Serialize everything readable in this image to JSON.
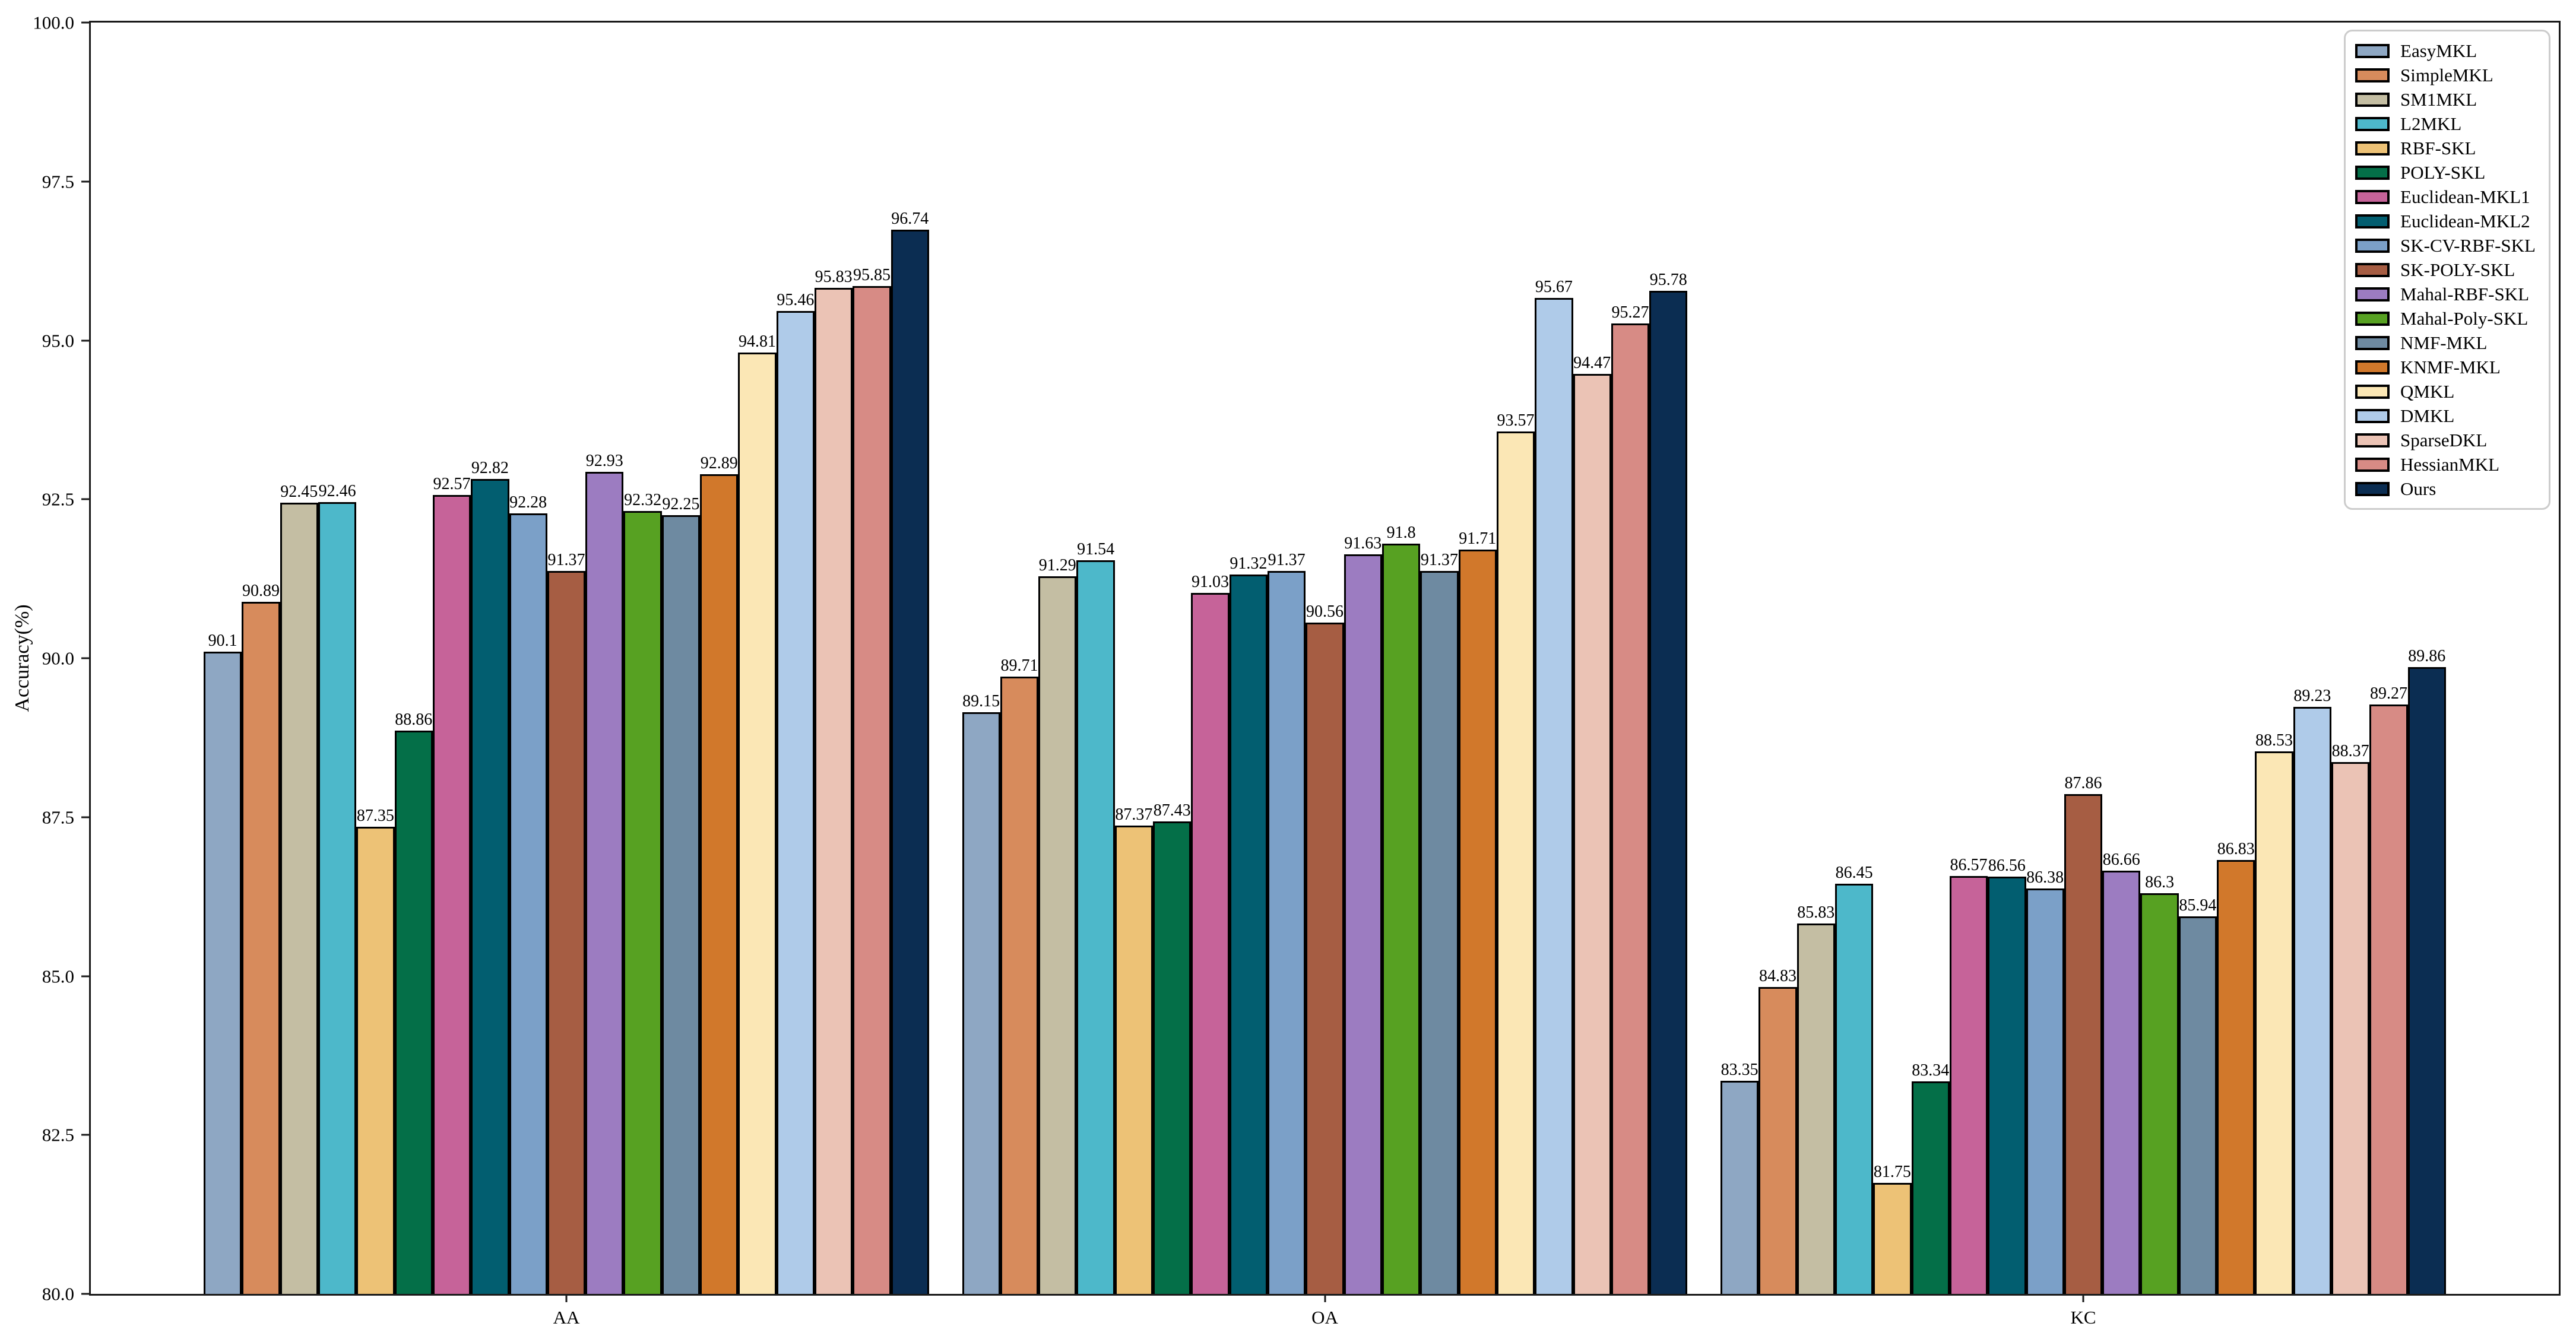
{
  "chart_data": {
    "type": "bar",
    "title": "",
    "xlabel": "",
    "ylabel": "Accuracy(%)",
    "ylim": [
      80,
      100
    ],
    "yticks": [
      "80.0",
      "82.5",
      "85.0",
      "87.5",
      "90.0",
      "92.5",
      "95.0",
      "97.5",
      "100.0"
    ],
    "grid": false,
    "legend_position": "upper right",
    "bar_edge_color": "#000000",
    "categories": [
      "AA",
      "OA",
      "KC"
    ],
    "series": [
      {
        "name": "EasyMKL",
        "color": "#8EA7C3",
        "values": [
          90.1,
          89.15,
          83.35
        ]
      },
      {
        "name": "SimpleMKL",
        "color": "#D78B5C",
        "values": [
          90.89,
          89.71,
          84.83
        ]
      },
      {
        "name": "SM1MKL",
        "color": "#C4BEA3",
        "values": [
          92.45,
          91.29,
          85.83
        ]
      },
      {
        "name": "L2MKL",
        "color": "#4DB8CA",
        "values": [
          92.46,
          91.54,
          86.45
        ]
      },
      {
        "name": "RBF-SKL",
        "color": "#EDC276",
        "values": [
          87.35,
          87.37,
          81.75
        ]
      },
      {
        "name": "POLY-SKL",
        "color": "#046F48",
        "values": [
          88.86,
          87.43,
          83.34
        ]
      },
      {
        "name": "Euclidean-MKL1",
        "color": "#C66399",
        "values": [
          92.57,
          91.03,
          86.57
        ]
      },
      {
        "name": "Euclidean-MKL2",
        "color": "#025E70",
        "values": [
          92.82,
          91.32,
          86.56
        ]
      },
      {
        "name": "SK-CV-RBF-SKL",
        "color": "#7BA0C8",
        "values": [
          92.28,
          91.37,
          86.38
        ]
      },
      {
        "name": "SK-POLY-SKL",
        "color": "#A65D43",
        "values": [
          91.37,
          90.56,
          87.86
        ]
      },
      {
        "name": "Mahal-RBF-SKL",
        "color": "#9C7CC1",
        "values": [
          92.93,
          91.63,
          86.66
        ]
      },
      {
        "name": "Mahal-Poly-SKL",
        "color": "#57A122",
        "values": [
          92.32,
          91.8,
          86.3
        ]
      },
      {
        "name": "NMF-MKL",
        "color": "#6E8AA1",
        "values": [
          92.25,
          91.37,
          85.94
        ]
      },
      {
        "name": "KNMF-MKL",
        "color": "#D1782B",
        "values": [
          92.89,
          91.71,
          86.83
        ]
      },
      {
        "name": "QMKL",
        "color": "#FBE7B5",
        "values": [
          94.81,
          93.57,
          88.53
        ]
      },
      {
        "name": "DMKL",
        "color": "#AFCBE9",
        "values": [
          95.46,
          95.67,
          89.23
        ]
      },
      {
        "name": "SparseDKL",
        "color": "#EBC3B5",
        "values": [
          95.83,
          94.47,
          88.37
        ]
      },
      {
        "name": "HessianMKL",
        "color": "#D78B85",
        "values": [
          95.85,
          95.27,
          89.27
        ]
      },
      {
        "name": "Ours",
        "color": "#0B2D52",
        "values": [
          96.74,
          95.78,
          89.86
        ]
      }
    ]
  }
}
